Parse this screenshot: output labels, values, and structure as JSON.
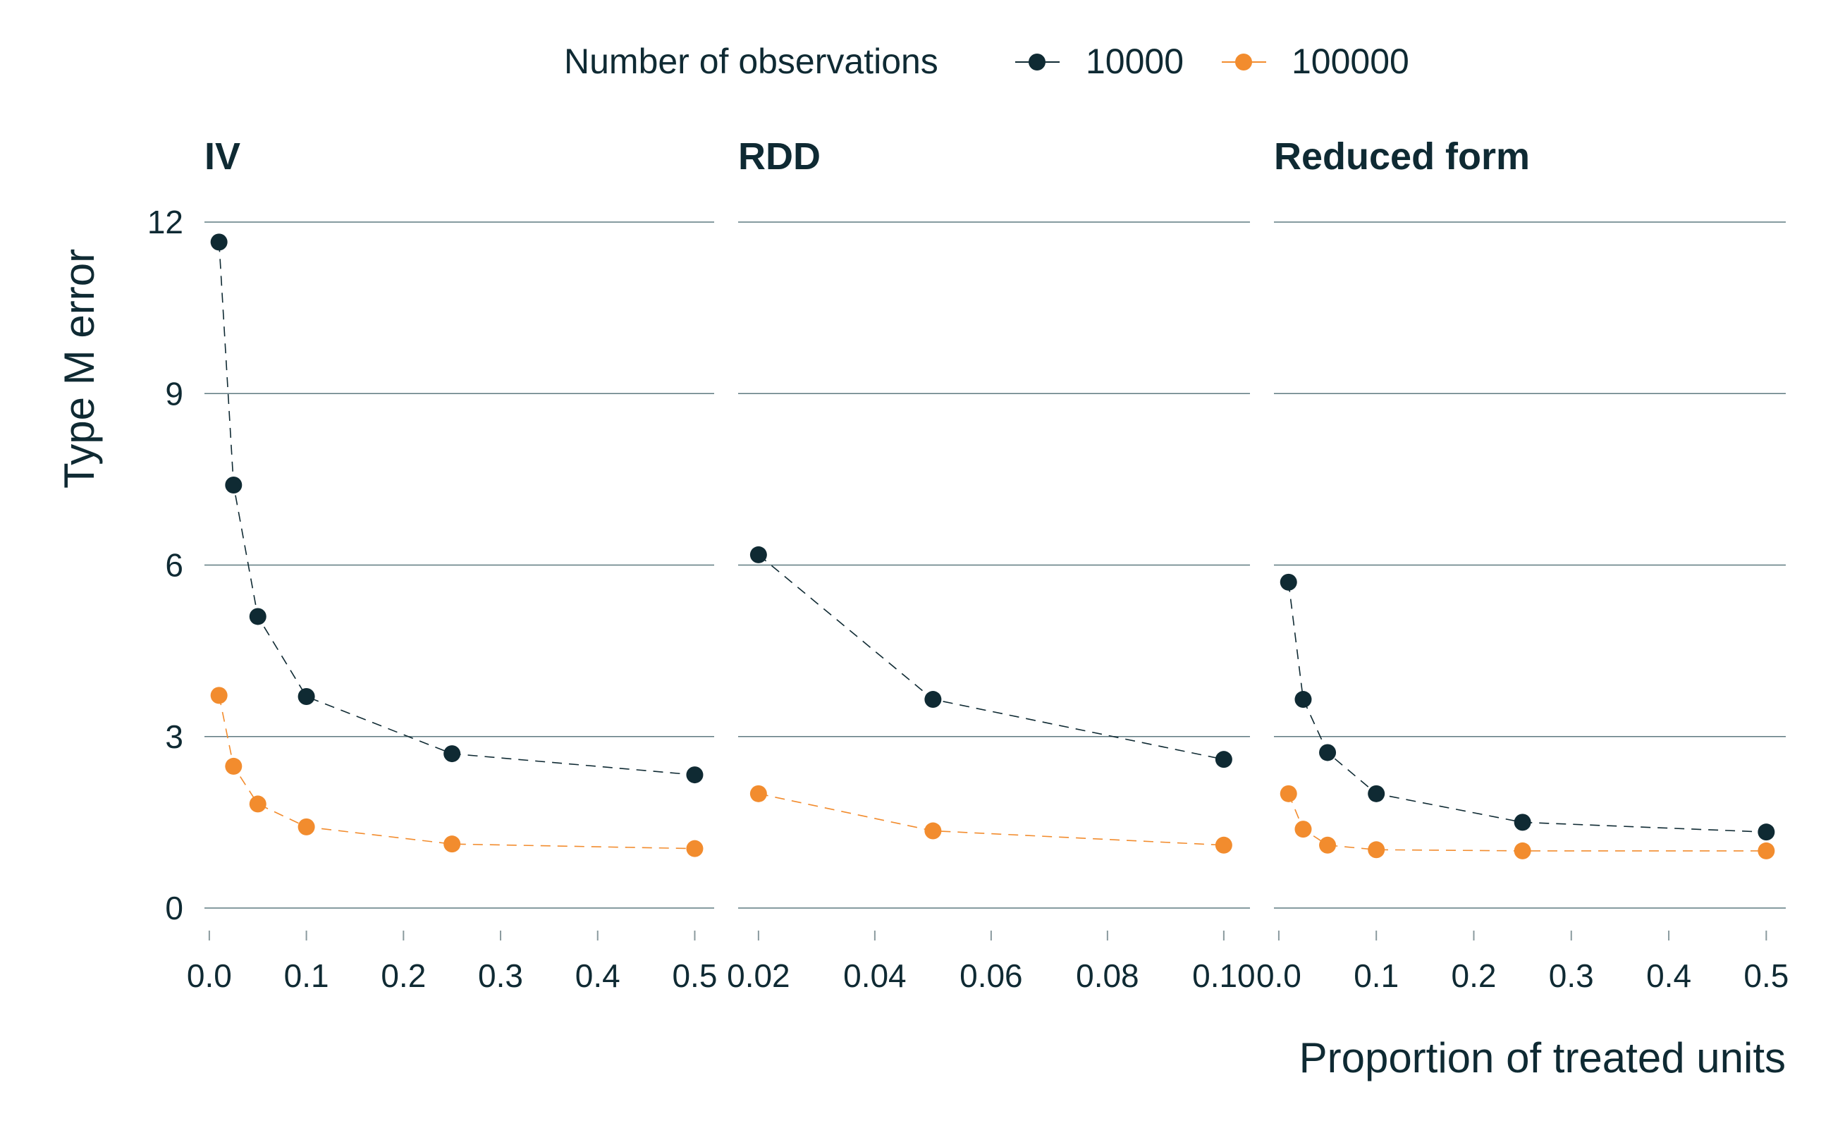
{
  "legend": {
    "title": "Number of observations",
    "entries": [
      {
        "label": "10000",
        "color": "#0f2a33"
      },
      {
        "label": "100000",
        "color": "#f28c2e"
      }
    ]
  },
  "chart_data": {
    "type": "scatter",
    "connected": "dashed-line",
    "ylabel": "Type M error",
    "xlabel": "Proportion of treated units",
    "ylim": [
      0,
      12
    ],
    "yticks": [
      0,
      3,
      6,
      9,
      12
    ],
    "grid": "horizontal",
    "legend_position": "top",
    "panels": [
      {
        "title": "IV",
        "xlim": [
          -0.005,
          0.52
        ],
        "xticks": [
          0.0,
          0.1,
          0.2,
          0.3,
          0.4,
          0.5
        ],
        "xtick_labels": [
          "0.0",
          "0.1",
          "0.2",
          "0.3",
          "0.4",
          "0.5"
        ],
        "series": [
          {
            "name": "10000",
            "x": [
              0.01,
              0.025,
              0.05,
              0.1,
              0.25,
              0.5
            ],
            "y": [
              11.65,
              7.4,
              5.1,
              3.7,
              2.7,
              2.33
            ]
          },
          {
            "name": "100000",
            "x": [
              0.01,
              0.025,
              0.05,
              0.1,
              0.25,
              0.5
            ],
            "y": [
              3.72,
              2.48,
              1.82,
              1.42,
              1.12,
              1.04
            ]
          }
        ]
      },
      {
        "title": "RDD",
        "xlim": [
          0.0165,
          0.1045
        ],
        "xticks": [
          0.02,
          0.04,
          0.06,
          0.08,
          0.1
        ],
        "xtick_labels": [
          "0.02",
          "0.04",
          "0.06",
          "0.08",
          "0.10"
        ],
        "series": [
          {
            "name": "10000",
            "x": [
              0.02,
              0.05,
              0.1
            ],
            "y": [
              6.18,
              3.65,
              2.6
            ]
          },
          {
            "name": "100000",
            "x": [
              0.02,
              0.05,
              0.1
            ],
            "y": [
              2.0,
              1.35,
              1.1
            ]
          }
        ]
      },
      {
        "title": "Reduced form",
        "xlim": [
          -0.005,
          0.52
        ],
        "xticks": [
          0.0,
          0.1,
          0.2,
          0.3,
          0.4,
          0.5
        ],
        "xtick_labels": [
          "0.0",
          "0.1",
          "0.2",
          "0.3",
          "0.4",
          "0.5"
        ],
        "series": [
          {
            "name": "10000",
            "x": [
              0.01,
              0.025,
              0.05,
              0.1,
              0.25,
              0.5
            ],
            "y": [
              5.7,
              3.65,
              2.72,
              2.0,
              1.5,
              1.33
            ]
          },
          {
            "name": "100000",
            "x": [
              0.01,
              0.025,
              0.05,
              0.1,
              0.25,
              0.5
            ],
            "y": [
              2.0,
              1.38,
              1.1,
              1.02,
              1.0,
              1.0
            ]
          }
        ]
      }
    ]
  }
}
